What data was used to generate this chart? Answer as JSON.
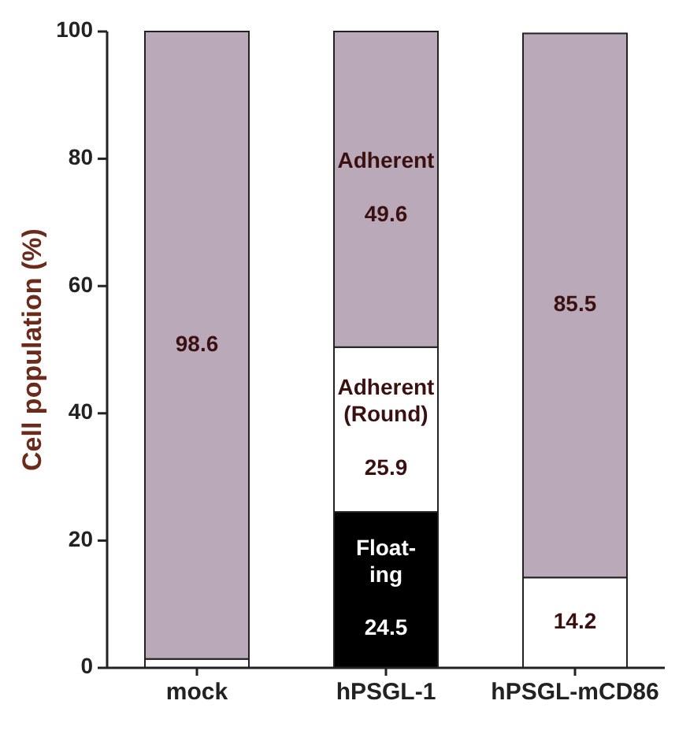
{
  "chart_data": {
    "type": "bar",
    "stacked": true,
    "ylabel": "Cell population (%)",
    "categories": [
      "mock",
      "hPSGL-1",
      "hPSGL-mCD86"
    ],
    "ylim": [
      0,
      100
    ],
    "yticks": [
      0,
      20,
      40,
      60,
      80,
      100
    ],
    "series": [
      {
        "name": "Float-ing",
        "color": "#000000",
        "values": [
          0,
          24.5,
          0
        ],
        "value_labels": [
          null,
          "24.5",
          null
        ]
      },
      {
        "name": "Adherent (Round)",
        "color": "#ffffff",
        "values": [
          1.4,
          25.9,
          14.2
        ],
        "value_labels": [
          null,
          "25.9",
          "14.2"
        ]
      },
      {
        "name": "Adherent",
        "color": "#b9a9b9",
        "values": [
          98.6,
          49.6,
          85.5
        ],
        "value_labels": [
          "98.6",
          "49.6",
          "85.5"
        ]
      }
    ]
  }
}
